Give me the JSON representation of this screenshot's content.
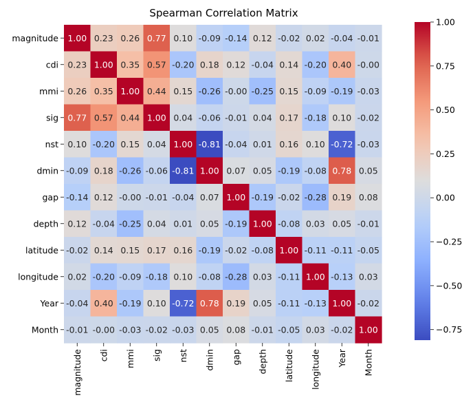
{
  "chart_data": {
    "type": "heatmap",
    "title": "Spearman Correlation Matrix",
    "xlabel": "",
    "ylabel": "",
    "labels": [
      "magnitude",
      "cdi",
      "mmi",
      "sig",
      "nst",
      "dmin",
      "gap",
      "depth",
      "latitude",
      "longitude",
      "Year",
      "Month"
    ],
    "matrix": [
      [
        1.0,
        0.23,
        0.26,
        0.77,
        0.1,
        -0.09,
        -0.14,
        0.12,
        -0.02,
        0.02,
        -0.04,
        -0.01
      ],
      [
        0.23,
        1.0,
        0.35,
        0.57,
        -0.2,
        0.18,
        0.12,
        -0.04,
        0.14,
        -0.2,
        0.4,
        -0.0
      ],
      [
        0.26,
        0.35,
        1.0,
        0.44,
        0.15,
        -0.26,
        -0.0,
        -0.25,
        0.15,
        -0.09,
        -0.19,
        -0.03
      ],
      [
        0.77,
        0.57,
        0.44,
        1.0,
        0.04,
        -0.06,
        -0.01,
        0.04,
        0.17,
        -0.18,
        0.1,
        -0.02
      ],
      [
        0.1,
        -0.2,
        0.15,
        0.04,
        1.0,
        -0.81,
        -0.04,
        0.01,
        0.16,
        0.1,
        -0.72,
        -0.03
      ],
      [
        -0.09,
        0.18,
        -0.26,
        -0.06,
        -0.81,
        1.0,
        0.07,
        0.05,
        -0.19,
        -0.08,
        0.78,
        0.05
      ],
      [
        -0.14,
        0.12,
        -0.0,
        -0.01,
        -0.04,
        0.07,
        1.0,
        -0.19,
        -0.02,
        -0.28,
        0.19,
        0.08
      ],
      [
        0.12,
        -0.04,
        -0.25,
        0.04,
        0.01,
        0.05,
        -0.19,
        1.0,
        -0.08,
        0.03,
        0.05,
        -0.01
      ],
      [
        -0.02,
        0.14,
        0.15,
        0.17,
        0.16,
        -0.19,
        -0.02,
        -0.08,
        1.0,
        -0.11,
        -0.11,
        -0.05
      ],
      [
        0.02,
        -0.2,
        -0.09,
        -0.18,
        0.1,
        -0.08,
        -0.28,
        0.03,
        -0.11,
        1.0,
        -0.13,
        0.03
      ],
      [
        -0.04,
        0.4,
        -0.19,
        0.1,
        -0.72,
        0.78,
        0.19,
        0.05,
        -0.11,
        -0.13,
        1.0,
        -0.02
      ],
      [
        -0.01,
        -0.0,
        -0.03,
        -0.02,
        -0.03,
        0.05,
        0.08,
        -0.01,
        -0.05,
        0.03,
        -0.02,
        1.0
      ]
    ],
    "annotation_format": "2 decimals",
    "colormap": "coolwarm",
    "colorbar": {
      "range": [
        -0.81,
        1.0
      ],
      "ticks": [
        1.0,
        0.75,
        0.5,
        0.25,
        0.0,
        -0.25,
        -0.5,
        -0.75
      ],
      "tick_labels": [
        "1.00",
        "0.75",
        "0.50",
        "0.25",
        "0.00",
        "−0.25",
        "−0.50",
        "−0.75"
      ],
      "placement": "right"
    },
    "grid": false
  }
}
